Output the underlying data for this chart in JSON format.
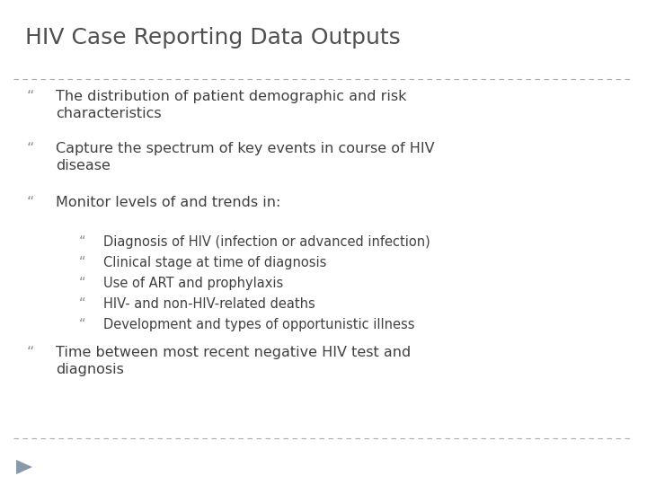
{
  "title": "HIV Case Reporting Data Outputs",
  "background_color": "#ffffff",
  "title_color": "#505050",
  "text_color": "#404040",
  "bullet_color": "#909090",
  "line_color": "#aaaaaa",
  "title_fontsize": 18,
  "body_fontsize": 11.5,
  "sub_fontsize": 10.5,
  "bullet_char": "“",
  "main_bullets": [
    "The distribution of patient demographic and risk\ncharacteristics",
    "Capture the spectrum of key events in course of HIV\ndisease",
    "Monitor levels of and trends in:"
  ],
  "sub_bullets": [
    "Diagnosis of HIV (infection or advanced infection)",
    "Clinical stage at time of diagnosis",
    "Use of ART and prophylaxis",
    "HIV- and non-HIV-related deaths",
    "Development and types of opportunistic illness"
  ],
  "last_bullet": "Time between most recent negative HIV test and\ndiagnosis",
  "arrow_color": "#8899aa"
}
